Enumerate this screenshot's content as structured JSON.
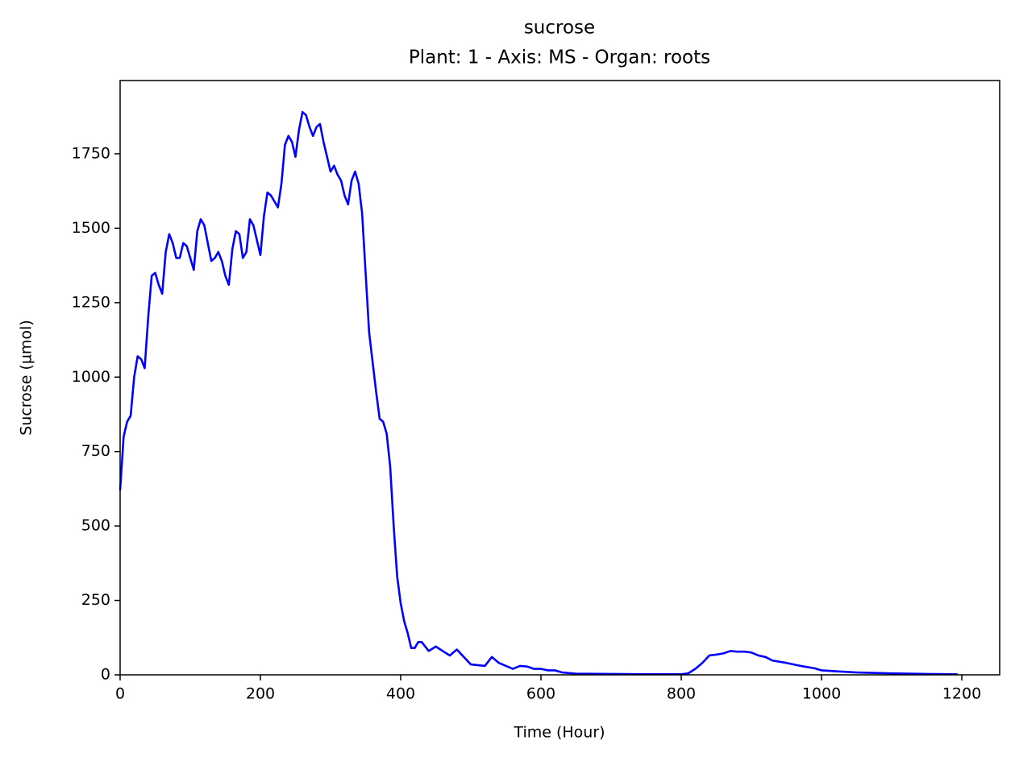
{
  "chart_data": {
    "type": "line",
    "title": "sucrose",
    "subtitle": "Plant: 1 - Axis: MS - Organ: roots",
    "x_label": "Time (Hour)",
    "y_label": "Sucrose (µmol)",
    "xlim": [
      0,
      1254
    ],
    "ylim": [
      0,
      1996
    ],
    "xticks": [
      0,
      200,
      400,
      600,
      800,
      1000,
      1200
    ],
    "yticks": [
      0,
      250,
      500,
      750,
      1000,
      1250,
      1500,
      1750
    ],
    "x": [
      0,
      5,
      10,
      15,
      20,
      25,
      30,
      35,
      40,
      45,
      50,
      55,
      60,
      65,
      70,
      75,
      80,
      85,
      90,
      95,
      100,
      105,
      110,
      115,
      120,
      125,
      130,
      135,
      140,
      145,
      150,
      155,
      160,
      165,
      170,
      175,
      180,
      185,
      190,
      195,
      200,
      205,
      210,
      215,
      220,
      225,
      230,
      235,
      240,
      245,
      250,
      255,
      260,
      265,
      270,
      275,
      280,
      285,
      290,
      295,
      300,
      305,
      310,
      315,
      320,
      325,
      330,
      335,
      340,
      345,
      350,
      355,
      360,
      365,
      370,
      375,
      380,
      385,
      390,
      395,
      400,
      405,
      410,
      415,
      420,
      425,
      430,
      440,
      450,
      460,
      470,
      480,
      490,
      500,
      520,
      530,
      540,
      560,
      570,
      580,
      590,
      600,
      610,
      620,
      630,
      650,
      700,
      750,
      800,
      810,
      820,
      830,
      840,
      850,
      860,
      870,
      880,
      890,
      900,
      910,
      920,
      930,
      950,
      970,
      990,
      1000,
      1020,
      1050,
      1100,
      1150,
      1194
    ],
    "series": [
      {
        "name": "sucrose",
        "color": "#0000ff",
        "values": [
          620,
          800,
          850,
          870,
          1000,
          1070,
          1060,
          1030,
          1200,
          1340,
          1350,
          1310,
          1280,
          1420,
          1480,
          1450,
          1400,
          1400,
          1450,
          1440,
          1400,
          1360,
          1490,
          1530,
          1510,
          1450,
          1390,
          1400,
          1420,
          1390,
          1340,
          1310,
          1430,
          1490,
          1480,
          1400,
          1420,
          1530,
          1510,
          1460,
          1410,
          1540,
          1620,
          1610,
          1590,
          1570,
          1650,
          1780,
          1810,
          1790,
          1740,
          1830,
          1890,
          1880,
          1840,
          1810,
          1840,
          1850,
          1790,
          1740,
          1690,
          1710,
          1680,
          1660,
          1610,
          1580,
          1660,
          1690,
          1650,
          1550,
          1350,
          1150,
          1050,
          950,
          860,
          850,
          810,
          700,
          500,
          330,
          240,
          180,
          140,
          90,
          90,
          110,
          110,
          80,
          95,
          80,
          65,
          85,
          60,
          35,
          30,
          60,
          40,
          20,
          30,
          28,
          20,
          20,
          15,
          15,
          8,
          4,
          3,
          2,
          2,
          5,
          20,
          40,
          65,
          68,
          72,
          80,
          78,
          78,
          75,
          65,
          60,
          48,
          40,
          30,
          22,
          15,
          12,
          8,
          5,
          3,
          2
        ]
      }
    ]
  }
}
